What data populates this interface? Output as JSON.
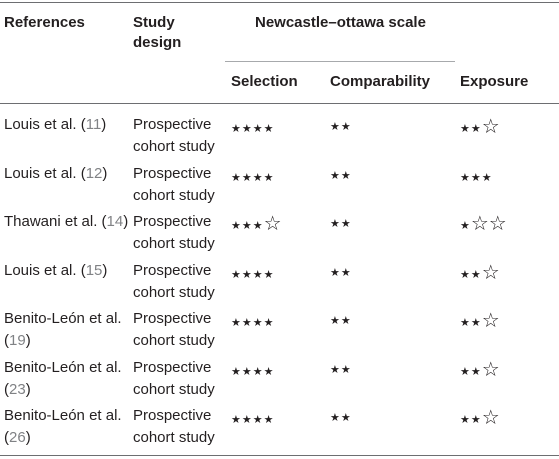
{
  "headers": {
    "references": "References",
    "study_design_line1": "Study",
    "study_design_line2": "design",
    "scale": "Newcastle–ottawa scale",
    "selection": "Selection",
    "comparability": "Comparability",
    "exposure": "Exposure"
  },
  "rows": [
    {
      "ref_l1": "Louis et al. (",
      "ref_link": "11",
      "ref_close": ")",
      "ref_l2": "",
      "ref_l2_link": "",
      "ref_l2_close": "",
      "design_l1": "Prospective",
      "design_l2": "cohort study",
      "selection": "★★★★",
      "selection_open": "",
      "comparability": "★★",
      "exposure": "★★",
      "exposure_open": "☆"
    },
    {
      "ref_l1": "Louis et al. (",
      "ref_link": "12",
      "ref_close": ")",
      "ref_l2": "",
      "ref_l2_link": "",
      "ref_l2_close": "",
      "design_l1": "Prospective",
      "design_l2": "cohort study",
      "selection": "★★★★",
      "selection_open": "",
      "comparability": "★★",
      "exposure": "★★★",
      "exposure_open": ""
    },
    {
      "ref_l1": "Thawani et al. (",
      "ref_link": "14",
      "ref_close": ")",
      "ref_l2": "",
      "ref_l2_link": "",
      "ref_l2_close": "",
      "design_l1": "Prospective",
      "design_l2": "cohort study",
      "selection": "★★★",
      "selection_open": "☆",
      "comparability": "★★",
      "exposure": "★",
      "exposure_open": "☆☆"
    },
    {
      "ref_l1": "Louis et al. (",
      "ref_link": "15",
      "ref_close": ")",
      "ref_l2": "",
      "ref_l2_link": "",
      "ref_l2_close": "",
      "design_l1": "Prospective",
      "design_l2": "cohort study",
      "selection": "★★★★",
      "selection_open": "",
      "comparability": "★★",
      "exposure": "★★",
      "exposure_open": "☆"
    },
    {
      "ref_l1": "Benito-León et al.",
      "ref_link": "",
      "ref_close": "",
      "ref_l2": "(",
      "ref_l2_link": "19",
      "ref_l2_close": ")",
      "design_l1": "Prospective",
      "design_l2": "cohort study",
      "selection": "★★★★",
      "selection_open": "",
      "comparability": "★★",
      "exposure": "★★",
      "exposure_open": "☆"
    },
    {
      "ref_l1": "Benito-León et al.",
      "ref_link": "",
      "ref_close": "",
      "ref_l2": "(",
      "ref_l2_link": "23",
      "ref_l2_close": ")",
      "design_l1": "Prospective",
      "design_l2": "cohort study",
      "selection": "★★★★",
      "selection_open": "",
      "comparability": "★★",
      "exposure": "★★",
      "exposure_open": "☆"
    },
    {
      "ref_l1": "Benito-León et al.",
      "ref_link": "",
      "ref_close": "",
      "ref_l2": "(",
      "ref_l2_link": "26",
      "ref_l2_close": ")",
      "design_l1": "Prospective",
      "design_l2": "cohort study",
      "selection": "★★★★",
      "selection_open": "",
      "comparability": "★★",
      "exposure": "★★",
      "exposure_open": "☆"
    }
  ]
}
